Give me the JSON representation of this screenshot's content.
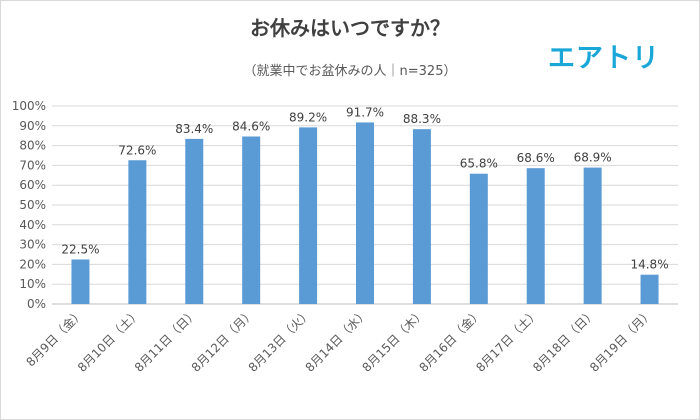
{
  "brand": {
    "logo_text": "エアトリ"
  },
  "chart_data": {
    "type": "bar",
    "title": "お休みはいつですか？",
    "subtitle": "（就業中でお盆休みの人｜n=325）",
    "categories": [
      "8月9日（金）",
      "8月10日（土）",
      "8月11日（日）",
      "8月12日（月）",
      "8月13日（火）",
      "8月14日（水）",
      "8月15日（木）",
      "8月16日（金）",
      "8月17日（土）",
      "8月18日（日）",
      "8月19日（月）"
    ],
    "values": [
      22.5,
      72.6,
      83.4,
      84.6,
      89.2,
      91.7,
      88.3,
      65.8,
      68.6,
      68.9,
      14.8
    ],
    "data_labels": [
      "22.5%",
      "72.6%",
      "83.4%",
      "84.6%",
      "89.2%",
      "91.7%",
      "88.3%",
      "65.8%",
      "68.6%",
      "68.9%",
      "14.8%"
    ],
    "ylim": [
      0,
      100
    ],
    "yticks": [
      0,
      10,
      20,
      30,
      40,
      50,
      60,
      70,
      80,
      90,
      100
    ],
    "ytick_labels": [
      "0%",
      "10%",
      "20%",
      "30%",
      "40%",
      "50%",
      "60%",
      "70%",
      "80%",
      "90%",
      "100%"
    ],
    "bar_color": "#5b9bd5",
    "grid": true,
    "legend": false
  }
}
